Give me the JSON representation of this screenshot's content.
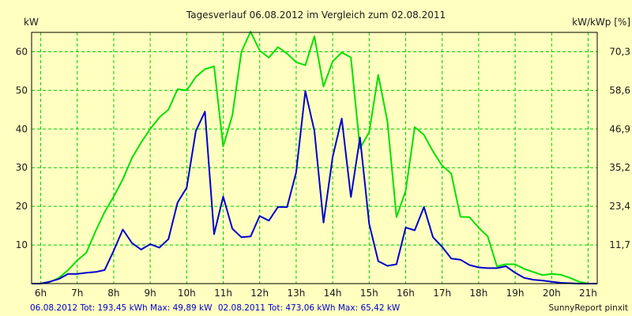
{
  "chart_data": {
    "type": "line",
    "title": "Tagesverlauf 06.08.2012 im Vergleich zum 02.08.2011",
    "ylabel_left": "kW",
    "ylabel_right": "kW/kWp [%]",
    "categories": [
      "6h",
      "7h",
      "8h",
      "9h",
      "10h",
      "11h",
      "12h",
      "13h",
      "14h",
      "15h",
      "16h",
      "17h",
      "18h",
      "19h",
      "20h",
      "21h"
    ],
    "yticks_left": [
      "10",
      "20",
      "30",
      "40",
      "50",
      "60"
    ],
    "yticks_right": [
      "11,7",
      "23,4",
      "35,2",
      "46,9",
      "58,6",
      "70,3"
    ],
    "xlim": [
      5.75,
      21.25
    ],
    "ylim": [
      0,
      65
    ],
    "grid": true,
    "series": [
      {
        "name": "06.08.2012",
        "color": "#0000cc",
        "x": [
          5.75,
          6.0,
          6.25,
          6.5,
          6.75,
          7.0,
          7.25,
          7.5,
          7.75,
          8.0,
          8.25,
          8.5,
          8.75,
          9.0,
          9.25,
          9.5,
          9.75,
          10.0,
          10.25,
          10.5,
          10.75,
          11.0,
          11.25,
          11.5,
          11.75,
          12.0,
          12.25,
          12.5,
          12.75,
          13.0,
          13.25,
          13.5,
          13.75,
          14.0,
          14.25,
          14.5,
          14.75,
          15.0,
          15.25,
          15.5,
          15.75,
          16.0,
          16.25,
          16.5,
          16.75,
          17.0,
          17.25,
          17.5,
          17.75,
          18.0,
          18.25,
          18.5,
          18.75,
          19.0,
          19.25,
          19.5,
          19.75,
          20.0,
          20.25,
          20.5,
          20.75,
          21.0,
          21.25
        ],
        "values": [
          0,
          0,
          0.5,
          1.2,
          2.5,
          2.5,
          2.8,
          3.0,
          3.5,
          8.5,
          14.0,
          10.5,
          8.8,
          10.2,
          9.3,
          11.5,
          21.0,
          24.8,
          39.5,
          44.5,
          12.8,
          22.5,
          14.2,
          12.0,
          12.2,
          17.5,
          16.3,
          19.8,
          19.8,
          28.8,
          49.8,
          39.5,
          15.8,
          32.8,
          42.7,
          22.4,
          37.8,
          15.5,
          5.8,
          4.6,
          5.0,
          14.5,
          13.8,
          19.8,
          12.0,
          9.5,
          6.5,
          6.2,
          4.8,
          4.2,
          4.0,
          4.0,
          4.5,
          2.8,
          1.5,
          1.0,
          0.8,
          0.5,
          0.2,
          0.1,
          0,
          0,
          0
        ]
      },
      {
        "name": "02.08.2011",
        "color": "#00e000",
        "x": [
          5.75,
          6.0,
          6.25,
          6.5,
          6.75,
          7.0,
          7.25,
          7.5,
          7.75,
          8.0,
          8.25,
          8.5,
          8.75,
          9.0,
          9.25,
          9.5,
          9.75,
          10.0,
          10.25,
          10.5,
          10.75,
          11.0,
          11.25,
          11.5,
          11.75,
          12.0,
          12.25,
          12.5,
          12.75,
          13.0,
          13.25,
          13.5,
          13.75,
          14.0,
          14.25,
          14.5,
          14.75,
          15.0,
          15.25,
          15.5,
          15.75,
          16.0,
          16.25,
          16.5,
          16.75,
          17.0,
          17.25,
          17.5,
          17.75,
          18.0,
          18.25,
          18.5,
          18.75,
          19.0,
          19.25,
          19.5,
          19.75,
          20.0,
          20.25,
          20.5,
          20.75,
          21.0,
          21.25
        ],
        "values": [
          0,
          0,
          0.4,
          1.5,
          3.5,
          6.0,
          8.0,
          13.5,
          18.5,
          22.5,
          27.0,
          32.5,
          36.5,
          40.0,
          43.0,
          45.0,
          50.3,
          50.0,
          53.5,
          55.5,
          56.2,
          35.5,
          43.5,
          60.0,
          65.2,
          60.3,
          58.5,
          61.2,
          59.5,
          57.3,
          56.5,
          64.0,
          51.0,
          57.5,
          59.8,
          58.5,
          35.0,
          39.2,
          54.0,
          42.0,
          17.2,
          24.0,
          40.5,
          38.5,
          34.2,
          30.5,
          28.5,
          17.3,
          17.2,
          14.5,
          12.2,
          4.5,
          5.0,
          5.0,
          3.8,
          3.0,
          2.2,
          2.5,
          2.3,
          1.5,
          0.5,
          0,
          0
        ]
      }
    ]
  },
  "footer": {
    "stats_2012": "06.08.2012 Tot: 193,45 kWh Max: 49,89 kW",
    "stats_2011": "02.08.2011 Tot: 473,06 kWh Max: 65,42 kW",
    "brand": "SunnyReport pinxit"
  }
}
